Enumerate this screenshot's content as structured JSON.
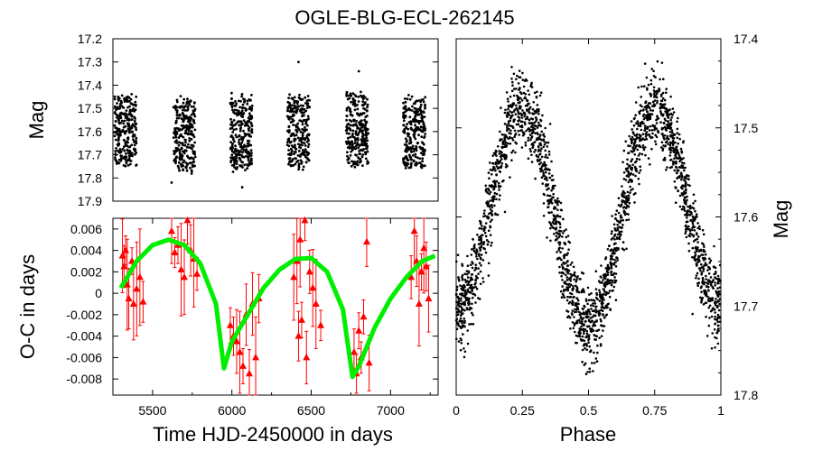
{
  "chart_data": [
    {
      "type": "scatter",
      "panel": "light-curve",
      "ylabel": "Mag",
      "xlim": [
        5250,
        7300
      ],
      "ylim": [
        17.2,
        17.9
      ],
      "y_inverted": true,
      "yticks": [
        "17.2",
        "17.3",
        "17.4",
        "17.5",
        "17.6",
        "17.7",
        "17.8",
        "17.9"
      ],
      "seasons": [
        {
          "center": 5330,
          "mag_min": 17.45,
          "mag_max": 17.75
        },
        {
          "center": 5700,
          "mag_min": 17.46,
          "mag_max": 17.77
        },
        {
          "center": 6060,
          "mag_min": 17.45,
          "mag_max": 17.76
        },
        {
          "center": 6420,
          "mag_min": 17.45,
          "mag_max": 17.75
        },
        {
          "center": 6790,
          "mag_min": 17.44,
          "mag_max": 17.75
        },
        {
          "center": 7150,
          "mag_min": 17.46,
          "mag_max": 17.75
        }
      ],
      "outliers": [
        {
          "x": 6420,
          "y": 17.3
        },
        {
          "x": 6800,
          "y": 17.34
        },
        {
          "x": 5620,
          "y": 17.82
        },
        {
          "x": 6065,
          "y": 17.84
        }
      ]
    },
    {
      "type": "scatter",
      "panel": "o-c",
      "xlabel": "Time HJD-2450000 in days",
      "ylabel": "O-C in days",
      "xlim": [
        5250,
        7300
      ],
      "ylim": [
        -0.0095,
        0.007
      ],
      "xticks": [
        "5500",
        "6000",
        "6500",
        "7000"
      ],
      "xtick_values": [
        5500,
        6000,
        6500,
        7000
      ],
      "yticks": [
        "0.006",
        "0.004",
        "0.002",
        "0",
        "-0.002",
        "-0.004",
        "-0.006",
        "-0.008"
      ],
      "ytick_values": [
        0.006,
        0.004,
        0.002,
        0,
        -0.002,
        -0.004,
        -0.006,
        -0.008
      ],
      "points": [
        [
          5310,
          0.0035
        ],
        [
          5320,
          0.0025
        ],
        [
          5330,
          0.004
        ],
        [
          5340,
          0.0008
        ],
        [
          5350,
          -0.0005
        ],
        [
          5370,
          0.003
        ],
        [
          5380,
          -0.001
        ],
        [
          5400,
          0.0004
        ],
        [
          5420,
          0.0015
        ],
        [
          5440,
          -0.0008
        ],
        [
          5620,
          0.0058
        ],
        [
          5640,
          0.0038
        ],
        [
          5660,
          0.0045
        ],
        [
          5680,
          0.0022
        ],
        [
          5700,
          0.0015
        ],
        [
          5720,
          0.0068
        ],
        [
          5740,
          0.004
        ],
        [
          5760,
          0.0032
        ],
        [
          5780,
          0.0018
        ],
        [
          5990,
          -0.003
        ],
        [
          6010,
          -0.004
        ],
        [
          6030,
          -0.0045
        ],
        [
          6050,
          -0.0055
        ],
        [
          6070,
          -0.0068
        ],
        [
          6090,
          -0.002
        ],
        [
          6110,
          -0.0075
        ],
        [
          6130,
          -0.001
        ],
        [
          6150,
          -0.006
        ],
        [
          6170,
          -0.0005
        ],
        [
          6390,
          0.0015
        ],
        [
          6410,
          0.003
        ],
        [
          6420,
          -0.004
        ],
        [
          6430,
          0.005
        ],
        [
          6440,
          -0.0025
        ],
        [
          6460,
          0.0068
        ],
        [
          6470,
          -0.006
        ],
        [
          6490,
          0.002
        ],
        [
          6510,
          0.0005
        ],
        [
          6530,
          -0.001
        ],
        [
          6560,
          -0.003
        ],
        [
          6770,
          -0.0055
        ],
        [
          6785,
          -0.0075
        ],
        [
          6800,
          -0.0035
        ],
        [
          6815,
          -0.006
        ],
        [
          6830,
          -0.0022
        ],
        [
          6850,
          0.0048
        ],
        [
          6865,
          -0.0065
        ],
        [
          7130,
          0.0015
        ],
        [
          7150,
          0.0058
        ],
        [
          7165,
          0.003
        ],
        [
          7180,
          -0.001
        ],
        [
          7195,
          0.002
        ],
        [
          7210,
          0.0042
        ],
        [
          7225,
          0.0025
        ],
        [
          7240,
          -0.0005
        ]
      ],
      "fit_curve": [
        [
          5300,
          0.0005
        ],
        [
          5400,
          0.003
        ],
        [
          5500,
          0.0045
        ],
        [
          5600,
          0.005
        ],
        [
          5700,
          0.0045
        ],
        [
          5800,
          0.0028
        ],
        [
          5900,
          -0.001
        ],
        [
          5950,
          -0.007
        ],
        [
          6000,
          -0.0045
        ],
        [
          6100,
          -0.002
        ],
        [
          6200,
          0.0005
        ],
        [
          6300,
          0.0022
        ],
        [
          6400,
          0.0032
        ],
        [
          6500,
          0.0033
        ],
        [
          6600,
          0.002
        ],
        [
          6700,
          -0.0015
        ],
        [
          6760,
          -0.0078
        ],
        [
          6800,
          -0.0068
        ],
        [
          6900,
          -0.0032
        ],
        [
          7000,
          -0.0005
        ],
        [
          7100,
          0.0015
        ],
        [
          7200,
          0.003
        ],
        [
          7280,
          0.0035
        ]
      ],
      "point_color": "#ff0000",
      "fit_color": "#00ee00"
    },
    {
      "type": "scatter",
      "panel": "phase",
      "xlabel": "Phase",
      "ylabel": "Mag",
      "xlim": [
        0,
        1
      ],
      "ylim": [
        17.4,
        17.8
      ],
      "y_inverted": true,
      "xticks": [
        "0",
        "0.25",
        "0.5",
        "0.75",
        "1"
      ],
      "xtick_values": [
        0,
        0.25,
        0.5,
        0.75,
        1
      ],
      "yticks": [
        "17.4",
        "17.5",
        "17.6",
        "17.7",
        "17.8"
      ],
      "ytick_values": [
        17.4,
        17.5,
        17.6,
        17.7,
        17.8
      ],
      "envelope": {
        "max_mag": 17.48,
        "min_mag_primary": 17.72,
        "min_mag_secondary": 17.7,
        "scatter": 0.04
      }
    }
  ],
  "title": "OGLE-BLG-ECL-262145",
  "lc_ylabel": "Mag",
  "oc_ylabel": "O-C in days",
  "oc_xlabel": "Time HJD-2450000 in days",
  "ph_xlabel": "Phase",
  "ph_ylabel": "Mag"
}
